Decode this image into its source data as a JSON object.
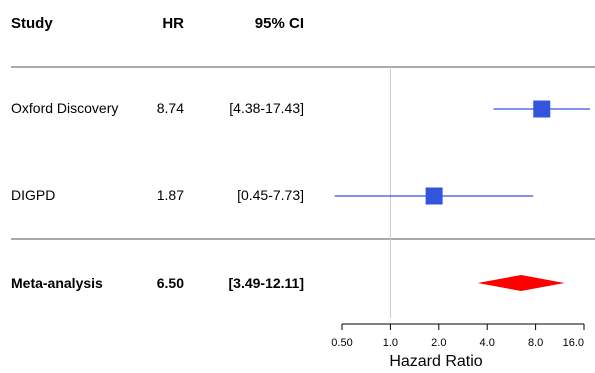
{
  "chart_data": {
    "type": "forest",
    "columns": {
      "study": "Study",
      "hr": "HR",
      "ci": "95% CI"
    },
    "studies": [
      {
        "name": "Oxford Discovery",
        "hr_label": "8.74",
        "ci_label": "[4.38-17.43]",
        "hr": 8.74,
        "lo": 4.38,
        "hi": 17.43
      },
      {
        "name": "DIGPD",
        "hr_label": "1.87",
        "ci_label": "[0.45-7.73]",
        "hr": 1.87,
        "lo": 0.45,
        "hi": 7.73
      }
    ],
    "meta": {
      "name": "Meta-analysis",
      "hr_label": "6.50",
      "ci_label": "[3.49-12.11]",
      "hr": 6.5,
      "lo": 3.49,
      "hi": 12.11
    },
    "xaxis": {
      "label": "Hazard Ratio",
      "scale": "log",
      "ticks": [
        0.5,
        1.0,
        2.0,
        4.0,
        8.0,
        16.0
      ],
      "tick_labels": [
        "0.50",
        "1.0",
        "2.0",
        "4.0",
        "8.0",
        "16.0"
      ],
      "xlim": [
        0.5,
        16.0
      ]
    },
    "reference_line": 1.0,
    "colors": {
      "study": "#3355dd",
      "meta": "#ff0000",
      "reference": "#c8c8c8",
      "divider": "#555555"
    }
  }
}
